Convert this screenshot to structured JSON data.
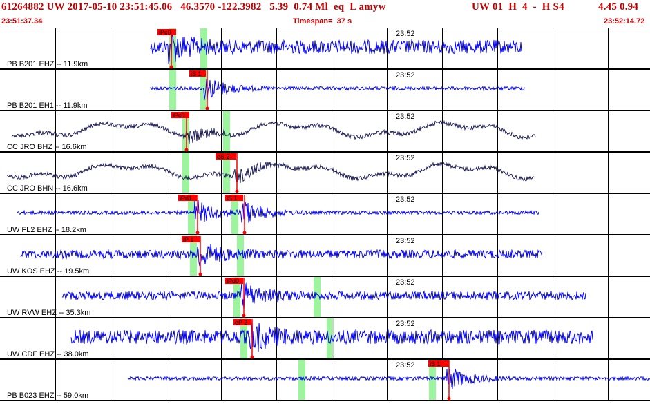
{
  "header": {
    "event_id": "61264882",
    "network": "UW",
    "origin_datetime": "2017-05-10 23:51:45.06",
    "latitude": "46.3570",
    "longitude": "-122.3982",
    "depth": "5.39",
    "magnitude": "0.74",
    "magnitude_type": "Ml",
    "event_type": "eq",
    "location_flag": "L",
    "analyst": "amyw",
    "solution_tag": "UW 01",
    "quality": "H",
    "num_phases": "4",
    "dash": "-",
    "solution_code": "H S4",
    "value_a": "4.45",
    "value_b": "0.94",
    "time_start": "23:51:37.34",
    "timespan": "Timespan=  37 s",
    "time_end": "23:52:14.72"
  },
  "colors": {
    "header_text": "#c00000",
    "trace_blue": "#0000ee",
    "trace_navy": "#1a1a55",
    "pick_red": "#ff0000",
    "pick_window_green": "#9cf59c",
    "grid": "#000000"
  },
  "time_tick_label": "23:52",
  "traces": [
    {
      "label": "PB B201 EHZ -- 11.9km",
      "color": "blue",
      "picks": [
        "iPc0"
      ],
      "amp": "high"
    },
    {
      "label": "PB B201 EH1 -- 11.9km",
      "color": "blue",
      "picks": [
        "iS 1"
      ],
      "amp": "low"
    },
    {
      "label": "CC JRO BHZ -- 16.6km",
      "color": "navy",
      "picks": [
        "iPc0"
      ],
      "amp": "wave"
    },
    {
      "label": "CC JRO BHN -- 16.6km",
      "color": "navy",
      "picks": [
        "eS 2"
      ],
      "amp": "wave"
    },
    {
      "label": "UW FL2 EHZ -- 18.2km",
      "color": "blue",
      "picks": [
        "iPd1",
        "iS 1"
      ],
      "amp": "low"
    },
    {
      "label": "UW KOS EHZ -- 19.5km",
      "color": "blue",
      "picks": [
        "iP 1"
      ],
      "amp": "mid"
    },
    {
      "label": "UW RVW EHZ -- 35.3km",
      "color": "blue",
      "picks": [
        "iPd0"
      ],
      "amp": "mid"
    },
    {
      "label": "UW CDF EHZ -- 38.0km",
      "color": "blue",
      "picks": [
        "eP 2"
      ],
      "amp": "high"
    },
    {
      "label": "PB B023 EHZ -- 59.0km",
      "color": "blue",
      "picks": [
        "iS 1"
      ],
      "amp": "low"
    }
  ]
}
